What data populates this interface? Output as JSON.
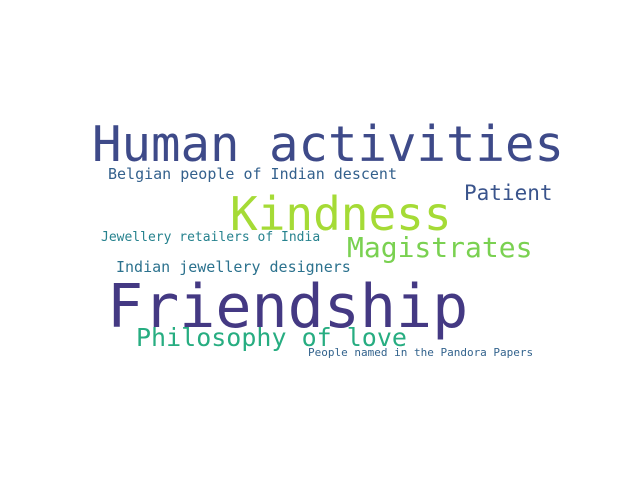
{
  "words": [
    {
      "text": "Human activities",
      "color": "#3e4a89"
    },
    {
      "text": "Belgian people of Indian descent",
      "color": "#34618d"
    },
    {
      "text": "Patient",
      "color": "#3a548c"
    },
    {
      "text": "Kindness",
      "color": "#a5db36"
    },
    {
      "text": "Jewellery retailers of India",
      "color": "#26828e"
    },
    {
      "text": "Magistrates",
      "color": "#7ad151"
    },
    {
      "text": "Indian jewellery designers",
      "color": "#2c728e"
    },
    {
      "text": "Friendship",
      "color": "#443983"
    },
    {
      "text": "Philosophy of love",
      "color": "#27ad81"
    },
    {
      "text": "People named in the Pandora Papers",
      "color": "#33638d"
    }
  ]
}
